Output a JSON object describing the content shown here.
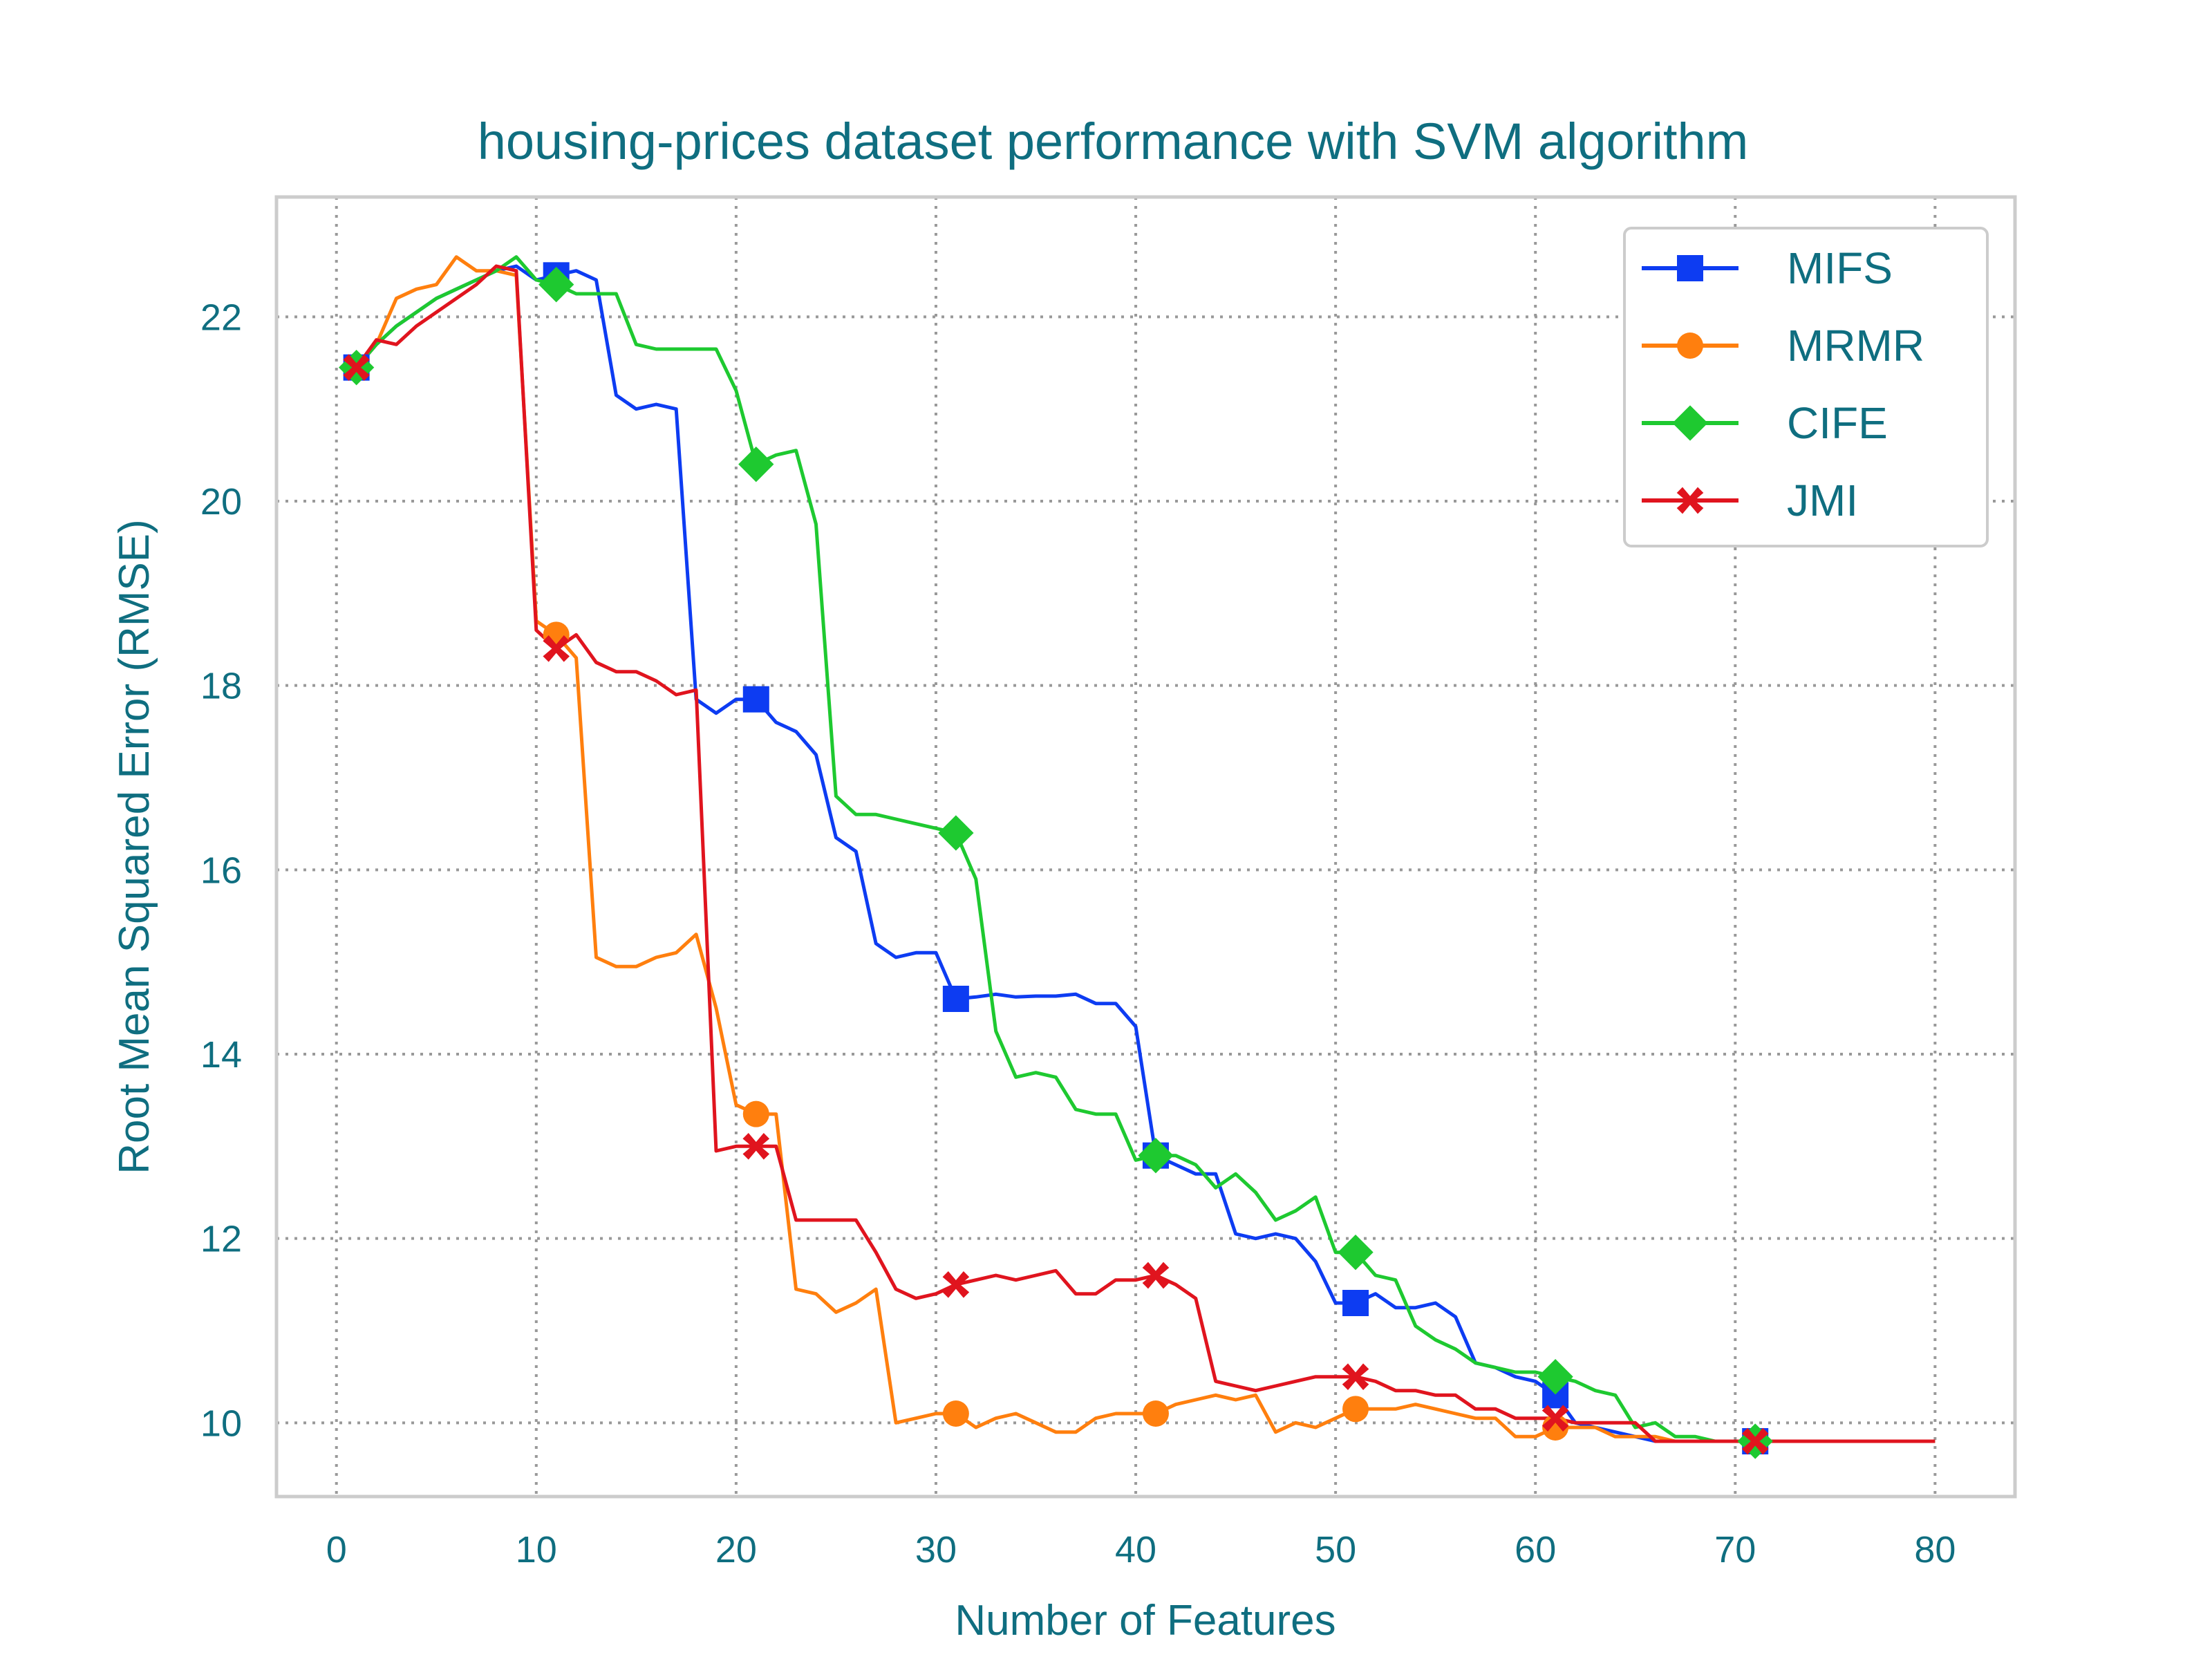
{
  "chart_data": {
    "type": "line",
    "title": "housing-prices dataset performance with SVM algorithm",
    "xlabel": "Number of Features",
    "ylabel": "Root Mean Squared Error (RMSE)",
    "xlim": [
      -3,
      84
    ],
    "ylim": [
      9.2,
      23.3
    ],
    "xticks": [
      0,
      10,
      20,
      30,
      40,
      50,
      60,
      70,
      80
    ],
    "yticks": [
      10,
      12,
      14,
      16,
      18,
      20,
      22
    ],
    "grid": true,
    "legend_position": "top-right",
    "series": [
      {
        "name": "MIFS",
        "color": "#0d3cf2",
        "marker": "square",
        "x": [
          1,
          2,
          3,
          4,
          5,
          6,
          7,
          8,
          9,
          10,
          11,
          12,
          13,
          14,
          15,
          16,
          17,
          18,
          19,
          20,
          21,
          22,
          23,
          24,
          25,
          26,
          27,
          28,
          29,
          30,
          31,
          32,
          33,
          34,
          35,
          36,
          37,
          38,
          39,
          40,
          41,
          42,
          43,
          44,
          45,
          46,
          47,
          48,
          49,
          50,
          51,
          52,
          53,
          54,
          55,
          56,
          57,
          58,
          59,
          60,
          61,
          62,
          63,
          64,
          65,
          66,
          67,
          68,
          69,
          70,
          71,
          72,
          73,
          74,
          75,
          76,
          77,
          78,
          79,
          80
        ],
        "y": [
          21.45,
          21.7,
          21.9,
          22.05,
          22.2,
          22.3,
          22.4,
          22.5,
          22.55,
          22.4,
          22.45,
          22.5,
          22.4,
          21.15,
          21.0,
          21.05,
          21.0,
          17.85,
          17.7,
          17.85,
          17.85,
          17.6,
          17.5,
          17.25,
          16.35,
          16.2,
          15.2,
          15.05,
          15.1,
          15.1,
          14.6,
          14.62,
          14.65,
          14.62,
          14.63,
          14.63,
          14.65,
          14.55,
          14.55,
          14.3,
          12.9,
          12.8,
          12.7,
          12.7,
          12.05,
          12.0,
          12.05,
          12.0,
          11.75,
          11.3,
          11.3,
          11.4,
          11.25,
          11.25,
          11.3,
          11.15,
          10.65,
          10.6,
          10.5,
          10.45,
          10.3,
          10.0,
          9.95,
          9.9,
          9.85,
          9.8,
          9.8,
          9.8,
          9.8,
          9.8,
          9.8,
          9.8,
          9.8,
          9.8,
          9.8,
          9.8,
          9.8,
          9.8,
          9.8,
          9.8
        ],
        "marker_x": [
          1,
          11,
          21,
          31,
          41,
          51,
          61,
          71
        ]
      },
      {
        "name": "MRMR",
        "color": "#ff7f0e",
        "marker": "circle",
        "x": [
          1,
          2,
          3,
          4,
          5,
          6,
          7,
          8,
          9,
          10,
          11,
          12,
          13,
          14,
          15,
          16,
          17,
          18,
          19,
          20,
          21,
          22,
          23,
          24,
          25,
          26,
          27,
          28,
          29,
          30,
          31,
          32,
          33,
          34,
          35,
          36,
          37,
          38,
          39,
          40,
          41,
          42,
          43,
          44,
          45,
          46,
          47,
          48,
          49,
          50,
          51,
          52,
          53,
          54,
          55,
          56,
          57,
          58,
          59,
          60,
          61,
          62,
          63,
          64,
          65,
          66,
          67,
          68,
          69,
          70,
          71,
          72,
          73,
          74,
          75,
          76,
          77,
          78,
          79,
          80
        ],
        "y": [
          21.45,
          21.7,
          22.2,
          22.3,
          22.35,
          22.65,
          22.5,
          22.5,
          22.45,
          18.7,
          18.55,
          18.3,
          15.05,
          14.95,
          14.95,
          15.05,
          15.1,
          15.3,
          14.5,
          13.45,
          13.35,
          13.35,
          11.45,
          11.4,
          11.2,
          11.3,
          11.45,
          10.0,
          10.05,
          10.1,
          10.1,
          9.95,
          10.05,
          10.1,
          10.0,
          9.9,
          9.9,
          10.05,
          10.1,
          10.1,
          10.1,
          10.2,
          10.25,
          10.3,
          10.25,
          10.3,
          9.9,
          10.0,
          9.95,
          10.05,
          10.15,
          10.15,
          10.15,
          10.2,
          10.15,
          10.1,
          10.05,
          10.05,
          9.85,
          9.85,
          9.95,
          9.95,
          9.95,
          9.85,
          9.85,
          9.85,
          9.8,
          9.8,
          9.8,
          9.8,
          9.8,
          9.8,
          9.8,
          9.8,
          9.8,
          9.8,
          9.8,
          9.8,
          9.8,
          9.8
        ],
        "marker_x": [
          11,
          21,
          31,
          41,
          51,
          61
        ]
      },
      {
        "name": "CIFE",
        "color": "#1ec930",
        "marker": "diamond",
        "x": [
          1,
          2,
          3,
          4,
          5,
          6,
          7,
          8,
          9,
          10,
          11,
          12,
          13,
          14,
          15,
          16,
          17,
          18,
          19,
          20,
          21,
          22,
          23,
          24,
          25,
          26,
          27,
          28,
          29,
          30,
          31,
          32,
          33,
          34,
          35,
          36,
          37,
          38,
          39,
          40,
          41,
          42,
          43,
          44,
          45,
          46,
          47,
          48,
          49,
          50,
          51,
          52,
          53,
          54,
          55,
          56,
          57,
          58,
          59,
          60,
          61,
          62,
          63,
          64,
          65,
          66,
          67,
          68,
          69,
          70,
          71,
          72,
          73,
          74,
          75,
          76,
          77,
          78,
          79,
          80
        ],
        "y": [
          21.45,
          21.7,
          21.9,
          22.05,
          22.2,
          22.3,
          22.4,
          22.5,
          22.65,
          22.4,
          22.35,
          22.25,
          22.25,
          22.25,
          21.7,
          21.65,
          21.65,
          21.65,
          21.65,
          21.2,
          20.4,
          20.5,
          20.55,
          19.75,
          16.8,
          16.6,
          16.6,
          16.55,
          16.5,
          16.45,
          16.4,
          15.9,
          14.25,
          13.75,
          13.8,
          13.75,
          13.4,
          13.35,
          13.35,
          12.85,
          12.9,
          12.9,
          12.8,
          12.55,
          12.7,
          12.5,
          12.2,
          12.3,
          12.45,
          11.85,
          11.85,
          11.6,
          11.55,
          11.05,
          10.9,
          10.8,
          10.65,
          10.6,
          10.55,
          10.55,
          10.5,
          10.45,
          10.35,
          10.3,
          9.95,
          10.0,
          9.85,
          9.85,
          9.8,
          9.8,
          9.8,
          9.8,
          9.8,
          9.8,
          9.8,
          9.8,
          9.8,
          9.8,
          9.8,
          9.8
        ],
        "marker_x": [
          1,
          11,
          21,
          31,
          41,
          51,
          61,
          71
        ]
      },
      {
        "name": "JMI",
        "color": "#e0141e",
        "marker": "x",
        "x": [
          1,
          2,
          3,
          4,
          5,
          6,
          7,
          8,
          9,
          10,
          11,
          12,
          13,
          14,
          15,
          16,
          17,
          18,
          19,
          20,
          21,
          22,
          23,
          24,
          25,
          26,
          27,
          28,
          29,
          30,
          31,
          32,
          33,
          34,
          35,
          36,
          37,
          38,
          39,
          40,
          41,
          42,
          43,
          44,
          45,
          46,
          47,
          48,
          49,
          50,
          51,
          52,
          53,
          54,
          55,
          56,
          57,
          58,
          59,
          60,
          61,
          62,
          63,
          64,
          65,
          66,
          67,
          68,
          69,
          70,
          71,
          72,
          73,
          74,
          75,
          76,
          77,
          78,
          79,
          80
        ],
        "y": [
          21.45,
          21.75,
          21.7,
          21.9,
          22.05,
          22.2,
          22.35,
          22.55,
          22.5,
          18.6,
          18.4,
          18.55,
          18.25,
          18.15,
          18.15,
          18.05,
          17.9,
          17.95,
          12.95,
          13.0,
          13.0,
          13.0,
          12.2,
          12.2,
          12.2,
          12.2,
          11.85,
          11.45,
          11.35,
          11.4,
          11.5,
          11.55,
          11.6,
          11.55,
          11.6,
          11.65,
          11.4,
          11.4,
          11.55,
          11.55,
          11.6,
          11.5,
          11.35,
          10.45,
          10.4,
          10.35,
          10.4,
          10.45,
          10.5,
          10.5,
          10.5,
          10.45,
          10.35,
          10.35,
          10.3,
          10.3,
          10.15,
          10.15,
          10.05,
          10.05,
          10.05,
          10.0,
          10.0,
          10.0,
          10.0,
          9.8,
          9.8,
          9.8,
          9.8,
          9.8,
          9.8,
          9.8,
          9.8,
          9.8,
          9.8,
          9.8,
          9.8,
          9.8,
          9.8,
          9.8
        ],
        "marker_x": [
          1,
          11,
          21,
          31,
          41,
          51,
          61,
          71
        ]
      }
    ]
  }
}
